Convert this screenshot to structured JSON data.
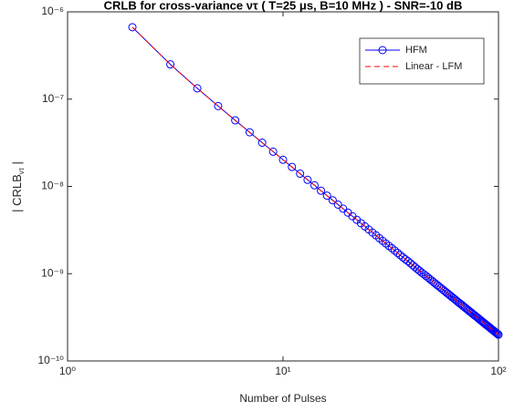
{
  "chart_data": {
    "type": "line",
    "title": "CRLB for cross-variance ντ ( T=25 μs, B=10 MHz ) - SNR=-10 dB",
    "xlabel": "Number of Pulses",
    "ylabel": {
      "main": "| CRLB",
      "sub": "ντ",
      "end": " |"
    },
    "xscale": "log",
    "yscale": "log",
    "xlim": [
      1,
      100
    ],
    "ylim": [
      1e-10,
      1e-06
    ],
    "xticks": [
      {
        "value": 1,
        "label": "10⁰"
      },
      {
        "value": 10,
        "label": "10¹"
      },
      {
        "value": 100,
        "label": "10²"
      }
    ],
    "yticks": [
      {
        "value": 1e-10,
        "label": "10⁻¹⁰"
      },
      {
        "value": 1e-09,
        "label": "10⁻⁹"
      },
      {
        "value": 1e-08,
        "label": "10⁻⁸"
      },
      {
        "value": 1e-07,
        "label": "10⁻⁷"
      },
      {
        "value": 1e-06,
        "label": "10⁻⁶"
      }
    ],
    "legend": "upper right",
    "x": [
      2,
      3,
      4,
      5,
      6,
      7,
      8,
      9,
      10,
      11,
      12,
      13,
      14,
      15,
      16,
      17,
      18,
      19,
      20,
      21,
      22,
      23,
      24,
      25,
      26,
      27,
      28,
      29,
      30,
      31,
      32,
      33,
      34,
      35,
      36,
      37,
      38,
      39,
      40,
      41,
      42,
      43,
      44,
      45,
      46,
      47,
      48,
      49,
      50,
      51,
      52,
      53,
      54,
      55,
      56,
      57,
      58,
      59,
      60,
      61,
      62,
      63,
      64,
      65,
      66,
      67,
      68,
      69,
      70,
      71,
      72,
      73,
      74,
      75,
      76,
      77,
      78,
      79,
      80,
      81,
      82,
      83,
      84,
      85,
      86,
      87,
      88,
      89,
      90,
      91,
      92,
      93,
      94,
      95,
      96,
      97,
      98,
      99,
      100
    ],
    "series": [
      {
        "name": "HFM",
        "color": "#0000ff",
        "dash": false,
        "marker": "circle",
        "values": [
          6.67e-07,
          2.5e-07,
          1.33e-07,
          8.33e-08,
          5.71e-08,
          4.17e-08,
          3.17e-08,
          2.5e-08,
          2.02e-08,
          1.67e-08,
          1.4e-08,
          1.19e-08,
          1.03e-08,
          8.93e-09,
          7.84e-09,
          6.94e-09,
          6.19e-09,
          5.56e-09,
          5.01e-09,
          4.55e-09,
          4.14e-09,
          3.79e-09,
          3.48e-09,
          3.21e-09,
          2.96e-09,
          2.75e-09,
          2.55e-09,
          2.38e-09,
          2.22e-09,
          2.08e-09,
          1.96e-09,
          1.84e-09,
          1.73e-09,
          1.63e-09,
          1.54e-09,
          1.46e-09,
          1.39e-09,
          1.32e-09,
          1.25e-09,
          1.19e-09,
          1.13e-09,
          1.08e-09,
          1.03e-09,
          9.88e-10,
          9.46e-10,
          9.06e-10,
          8.68e-10,
          8.33e-10,
          8e-10,
          7.69e-10,
          7.4e-10,
          7.12e-10,
          6.86e-10,
          6.61e-10,
          6.38e-10,
          6.16e-10,
          5.95e-10,
          5.75e-10,
          5.56e-10,
          5.38e-10,
          5.2e-10,
          5.04e-10,
          4.88e-10,
          4.73e-10,
          4.59e-10,
          4.46e-10,
          4.33e-10,
          4.2e-10,
          4.08e-10,
          3.97e-10,
          3.86e-10,
          3.75e-10,
          3.65e-10,
          3.56e-10,
          3.46e-10,
          3.37e-10,
          3.29e-10,
          3.21e-10,
          3.13e-10,
          3.05e-10,
          2.97e-10,
          2.9e-10,
          2.83e-10,
          2.77e-10,
          2.7e-10,
          2.64e-10,
          2.58e-10,
          2.53e-10,
          2.47e-10,
          2.42e-10,
          2.36e-10,
          2.31e-10,
          2.26e-10,
          2.22e-10,
          2.17e-10,
          2.13e-10,
          2.08e-10,
          2.04e-10,
          2e-10
        ]
      },
      {
        "name": "Linear - LFM",
        "color": "#ff0000",
        "dash": true,
        "marker": "none",
        "values": [
          6.67e-07,
          2.5e-07,
          1.33e-07,
          8.33e-08,
          5.71e-08,
          4.17e-08,
          3.17e-08,
          2.5e-08,
          2.02e-08,
          1.67e-08,
          1.4e-08,
          1.19e-08,
          1.03e-08,
          8.93e-09,
          7.84e-09,
          6.94e-09,
          6.19e-09,
          5.56e-09,
          5.01e-09,
          4.55e-09,
          4.14e-09,
          3.79e-09,
          3.48e-09,
          3.21e-09,
          2.96e-09,
          2.75e-09,
          2.55e-09,
          2.38e-09,
          2.22e-09,
          2.08e-09,
          1.96e-09,
          1.84e-09,
          1.73e-09,
          1.63e-09,
          1.54e-09,
          1.46e-09,
          1.39e-09,
          1.32e-09,
          1.25e-09,
          1.19e-09,
          1.13e-09,
          1.08e-09,
          1.03e-09,
          9.88e-10,
          9.46e-10,
          9.06e-10,
          8.68e-10,
          8.33e-10,
          8e-10,
          7.69e-10,
          7.4e-10,
          7.12e-10,
          6.86e-10,
          6.61e-10,
          6.38e-10,
          6.16e-10,
          5.95e-10,
          5.75e-10,
          5.56e-10,
          5.38e-10,
          5.2e-10,
          5.04e-10,
          4.88e-10,
          4.73e-10,
          4.59e-10,
          4.46e-10,
          4.33e-10,
          4.2e-10,
          4.08e-10,
          3.97e-10,
          3.86e-10,
          3.75e-10,
          3.65e-10,
          3.56e-10,
          3.46e-10,
          3.37e-10,
          3.29e-10,
          3.21e-10,
          3.13e-10,
          3.05e-10,
          2.97e-10,
          2.9e-10,
          2.83e-10,
          2.77e-10,
          2.7e-10,
          2.64e-10,
          2.58e-10,
          2.53e-10,
          2.47e-10,
          2.42e-10,
          2.36e-10,
          2.31e-10,
          2.26e-10,
          2.22e-10,
          2.17e-10,
          2.13e-10,
          2.08e-10,
          2.04e-10,
          2e-10
        ]
      }
    ]
  }
}
